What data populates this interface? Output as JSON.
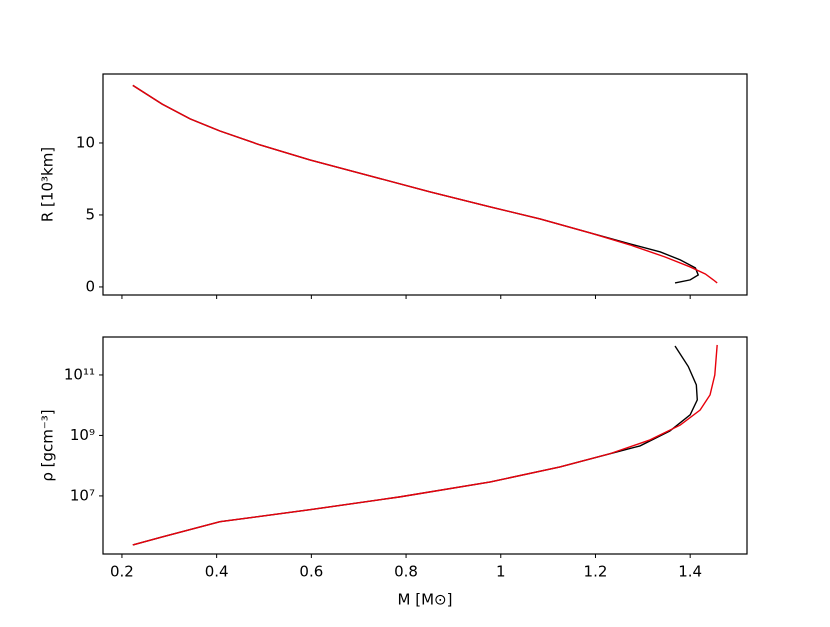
{
  "chart_data": [
    {
      "type": "line",
      "ylabel": "R [10³km]",
      "xlim": [
        0.16,
        1.52
      ],
      "xticks": [
        0.2,
        0.4,
        0.6,
        0.8,
        1.0,
        1.2,
        1.4
      ],
      "show_xticklabels": false,
      "ylim": [
        -0.56,
        14.79
      ],
      "yticks": [
        0,
        5,
        10
      ],
      "yscale": "linear",
      "series": [
        {
          "color": "#000000",
          "x": [
            0.223,
            0.285,
            0.344,
            0.407,
            0.492,
            0.597,
            0.724,
            0.851,
            0.978,
            1.083,
            1.189,
            1.273,
            1.337,
            1.379,
            1.411,
            1.417,
            1.4,
            1.368
          ],
          "values": [
            14.0,
            12.7,
            11.67,
            10.83,
            9.86,
            8.82,
            7.71,
            6.6,
            5.56,
            4.72,
            3.75,
            2.99,
            2.43,
            1.88,
            1.32,
            0.83,
            0.49,
            0.28
          ]
        },
        {
          "color": "#e8000b",
          "x": [
            0.223,
            0.285,
            0.344,
            0.407,
            0.492,
            0.597,
            0.724,
            0.851,
            0.978,
            1.083,
            1.189,
            1.273,
            1.347,
            1.4,
            1.432,
            1.449,
            1.457
          ],
          "values": [
            14.0,
            12.7,
            11.67,
            10.83,
            9.86,
            8.82,
            7.71,
            6.6,
            5.56,
            4.72,
            3.75,
            2.92,
            2.08,
            1.39,
            0.9,
            0.49,
            0.28
          ]
        }
      ]
    },
    {
      "type": "line",
      "ylabel": "ρ [gcm⁻³]",
      "xlabel": "M [M⊙]",
      "xlim": [
        0.16,
        1.52
      ],
      "xticks": [
        0.2,
        0.4,
        0.6,
        0.8,
        1.0,
        1.2,
        1.4
      ],
      "show_xticklabels": true,
      "ylim": [
        120000,
        1800000000000
      ],
      "yscale": "log",
      "yticks": [
        {
          "value": 10000000,
          "label": "10⁷"
        },
        {
          "value": 1000000000,
          "label": "10⁹"
        },
        {
          "value": 100000000000,
          "label": "10¹¹"
        }
      ],
      "series": [
        {
          "color": "#000000",
          "x": [
            0.223,
            0.285,
            0.407,
            0.597,
            0.787,
            0.978,
            1.125,
            1.231,
            1.294,
            1.357,
            1.4,
            1.415,
            1.413,
            1.396,
            1.368
          ],
          "values": [
            240000,
            440000,
            1400000,
            3500000,
            9300000,
            29000000,
            91000000,
            250000000,
            450000000,
            1400000000,
            4800000000,
            15000000000,
            47000000000,
            190000000000,
            910000000000
          ]
        },
        {
          "color": "#e8000b",
          "x": [
            0.223,
            0.285,
            0.407,
            0.597,
            0.787,
            0.978,
            1.125,
            1.231,
            1.315,
            1.379,
            1.421,
            1.442,
            1.452,
            1.457
          ],
          "values": [
            240000,
            440000,
            1400000,
            3500000,
            9300000,
            29000000,
            91000000,
            250000000,
            710000000,
            2200000000,
            6900000000,
            22000000000,
            100000000000,
            980000000000
          ]
        }
      ]
    }
  ]
}
